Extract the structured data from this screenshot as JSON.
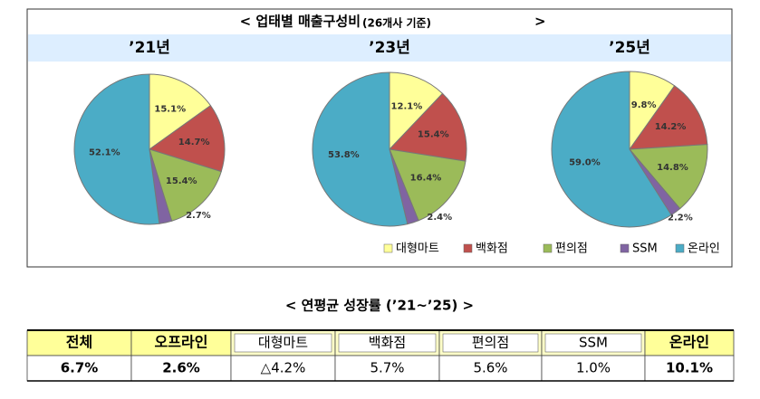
{
  "title": "<  업태별 매출구성비",
  "title_note": "(26개사 기준)",
  "title_end": ">",
  "legend": {
    "names": [
      "대형마트",
      "백화점",
      "편의점",
      "SSM",
      "온라인"
    ],
    "colors": [
      "#ffff99",
      "#c0504d",
      "#9bbb59",
      "#8064a2",
      "#4bacc6"
    ]
  },
  "chart_data": [
    {
      "type": "pie",
      "title": "’21년",
      "values": [
        15.1,
        14.7,
        15.4,
        2.7,
        52.1
      ],
      "value_labels": [
        "15.1%",
        "14.7%",
        "15.4%",
        "2.7%",
        "52.1%"
      ]
    },
    {
      "type": "pie",
      "title": "’23년",
      "values": [
        12.1,
        15.4,
        16.4,
        2.4,
        53.8
      ],
      "value_labels": [
        "12.1%",
        "15.4%",
        "16.4%",
        "2.4%",
        "53.8%"
      ]
    },
    {
      "type": "pie",
      "title": "’25년",
      "values": [
        9.8,
        14.2,
        14.8,
        2.2,
        59.0
      ],
      "value_labels": [
        "9.8%",
        "14.2%",
        "14.8%",
        "2.2%",
        "59.0%"
      ]
    }
  ],
  "table": {
    "title": "<  연평균 성장률 (’21~’25)  >",
    "header": [
      "전체",
      "오프라인",
      "대형마트",
      "백화점",
      "편의점",
      "SSM",
      "온라인"
    ],
    "rows": [
      [
        "6.7%",
        "2.6%",
        "△4.2%",
        "5.7%",
        "5.6%",
        "1.0%",
        "10.1%"
      ]
    ]
  }
}
